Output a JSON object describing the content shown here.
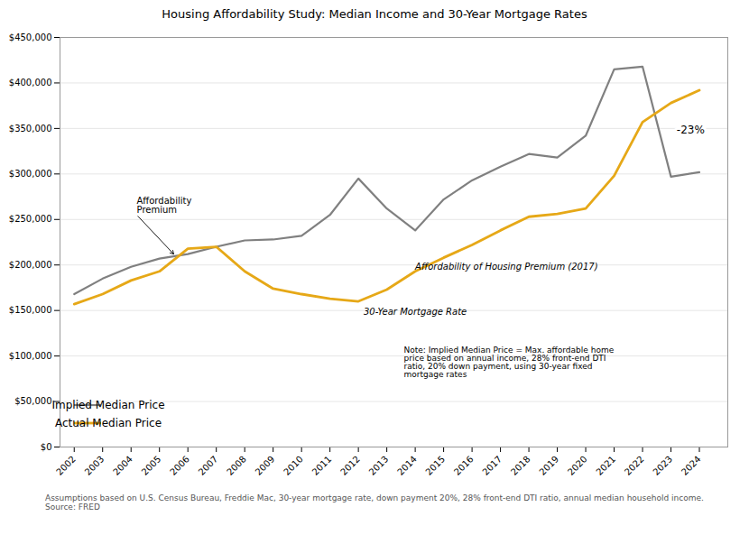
{
  "chart_data": {
    "type": "line",
    "title": "Housing Affordability Study: Median Income and 30-Year Mortgage Rates",
    "x": [
      2002,
      2003,
      2004,
      2005,
      2006,
      2007,
      2008,
      2009,
      2010,
      2011,
      2012,
      2013,
      2014,
      2015,
      2016,
      2017,
      2018,
      2019,
      2020,
      2021,
      2022,
      2023,
      2024
    ],
    "series": [
      {
        "name": "Implied Median Price",
        "color": "#808080",
        "values": [
          168000,
          185000,
          198000,
          207000,
          212000,
          220000,
          227000,
          228000,
          232000,
          255000,
          295000,
          262000,
          238000,
          272000,
          293000,
          308000,
          322000,
          318000,
          342000,
          415000,
          418000,
          297000,
          302000
        ]
      },
      {
        "name": "Actual Median Price",
        "color": "#E6A817",
        "values": [
          157000,
          168000,
          183000,
          193000,
          218000,
          220000,
          193000,
          174000,
          168000,
          163000,
          160000,
          173000,
          193000,
          208000,
          222000,
          238000,
          253000,
          256000,
          262000,
          298000,
          357000,
          378000,
          392000
        ]
      }
    ],
    "xlim": [
      2001.5,
      2025.0
    ],
    "xticks": [
      2002,
      2003,
      2004,
      2005,
      2006,
      2007,
      2008,
      2009,
      2010,
      2011,
      2012,
      2013,
      2014,
      2015,
      2016,
      2017,
      2018,
      2019,
      2020,
      2021,
      2022,
      2023,
      2024
    ],
    "ylim": [
      0,
      450000
    ],
    "yticks": [
      {
        "value": 0,
        "label": "$0"
      },
      {
        "value": 50000,
        "label": "$50,000"
      },
      {
        "value": 100000,
        "label": "$100,000"
      },
      {
        "value": 150000,
        "label": "$150,000"
      },
      {
        "value": 200000,
        "label": "$200,000"
      },
      {
        "value": 250000,
        "label": "$250,000"
      },
      {
        "value": 300000,
        "label": "$300,000"
      },
      {
        "value": 350000,
        "label": "$350,000"
      },
      {
        "value": 400000,
        "label": "$400,000"
      },
      {
        "value": 450000,
        "label": "$450,000"
      }
    ],
    "grid": true,
    "legend": "lower left",
    "arrow_annotation": {
      "text": "Affordability\nPremium",
      "x": 2004.2,
      "y": 255000,
      "arrow_x": 2005.5,
      "arrow_y": 212000
    },
    "labels": [
      {
        "text": "Affordability of Housing Premium (2017)",
        "x": 2014.0,
        "y": 198000,
        "anchor": "start"
      },
      {
        "text": "30-Year Mortgage Rate",
        "x": 2014.0,
        "y": 148000,
        "anchor": "middle"
      }
    ],
    "note": {
      "text": "Note: Implied Median Price = Max. affordable home\nprice based on annual income, 28% front-end DTI\nratio, 20% down payment, using 30-year fixed\nmortgage rates",
      "x": 2013.6,
      "y": 110000
    },
    "callout": {
      "text": "-23%",
      "x": 2023.2,
      "y": 348000
    },
    "footnote": "Assumptions based on U.S. Census Bureau, Freddie Mac, 30-year mortgage rate, down payment 20%, 28% front-end DTI ratio, annual median household income.\nSource: FRED"
  }
}
